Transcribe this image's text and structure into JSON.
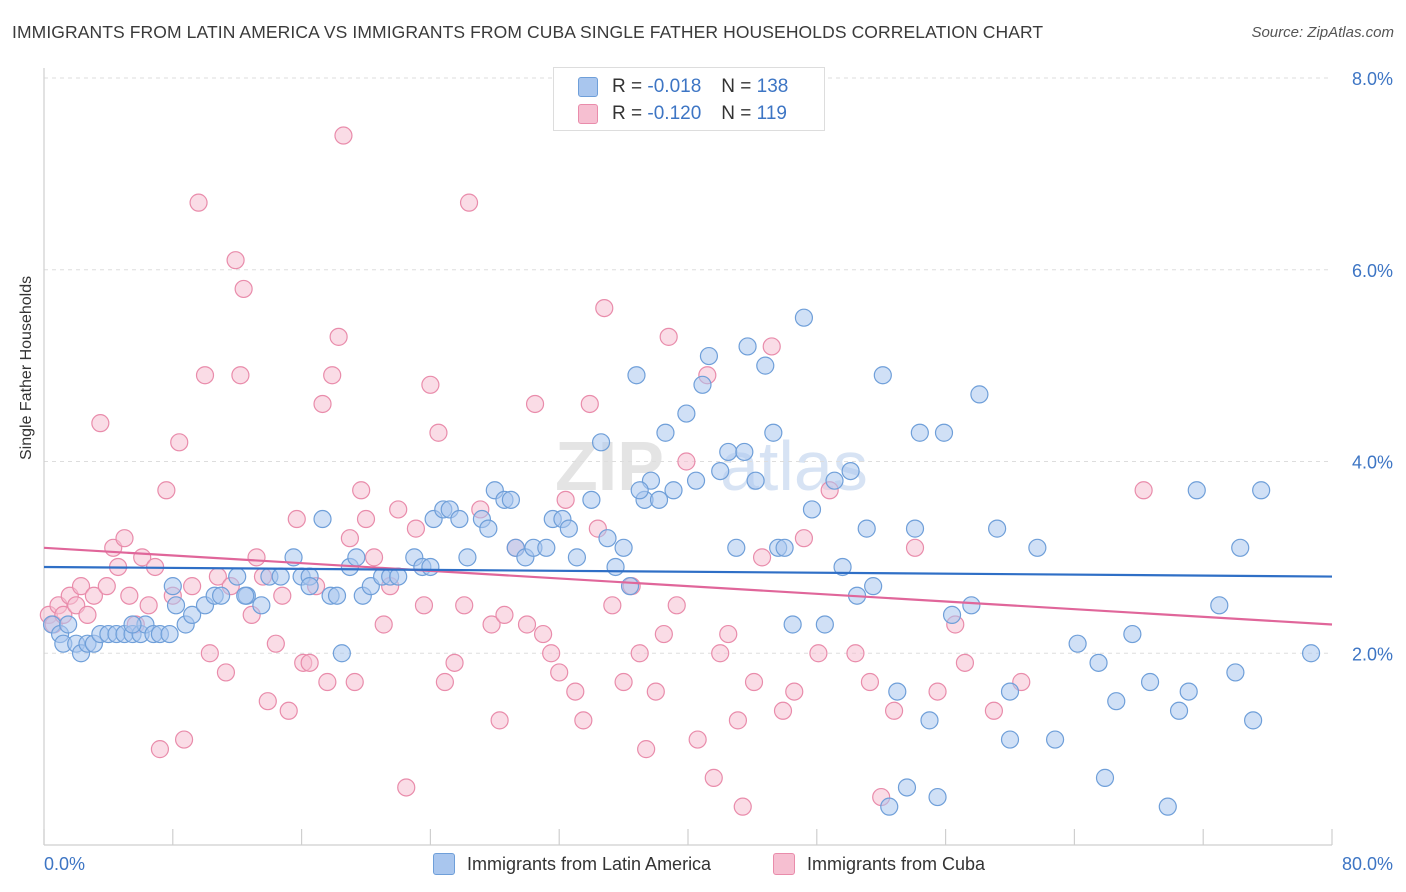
{
  "header": {
    "title": "IMMIGRANTS FROM LATIN AMERICA VS IMMIGRANTS FROM CUBA SINGLE FATHER HOUSEHOLDS CORRELATION CHART",
    "source": "Source: ZipAtlas.com"
  },
  "colors": {
    "blue_fill": "#a9c6ee",
    "blue_stroke": "#6f9fd9",
    "blue_line": "#2f6fc6",
    "pink_fill": "#f6bfd1",
    "pink_stroke": "#e98cab",
    "pink_line": "#e0669a",
    "axis_text": "#3d75c4",
    "grid": "#dddddd"
  },
  "legend": {
    "blue": {
      "r_label": "R =",
      "r_value": "-0.018",
      "n_label": "N =",
      "n_value": "138"
    },
    "pink": {
      "r_label": "R =",
      "r_value": "-0.120",
      "n_label": "N =",
      "n_value": "119"
    }
  },
  "bottom_legend": {
    "blue": "Immigrants from Latin America",
    "pink": "Immigrants from Cuba"
  },
  "watermark": {
    "zip": "ZIP",
    "atlas": "atlas"
  },
  "chart_data": {
    "type": "scatter",
    "title": "IMMIGRANTS FROM LATIN AMERICA VS IMMIGRANTS FROM CUBA SINGLE FATHER HOUSEHOLDS CORRELATION CHART",
    "xlabel": "",
    "ylabel": "Single Father Households",
    "xlim": [
      0,
      80
    ],
    "ylim": [
      0,
      8.0
    ],
    "x_tick_labels": {
      "min": "0.0%",
      "max": "80.0%"
    },
    "y_ticks": [
      2.0,
      4.0,
      6.0,
      8.0
    ],
    "y_tick_labels": [
      "2.0%",
      "4.0%",
      "6.0%",
      "8.0%"
    ],
    "grid": true,
    "series": [
      {
        "name": "Immigrants from Latin America",
        "color": "blue",
        "trend": [
          [
            0,
            2.9
          ],
          [
            80,
            2.8
          ]
        ],
        "points": [
          [
            0.5,
            2.3
          ],
          [
            1.0,
            2.2
          ],
          [
            1.2,
            2.1
          ],
          [
            1.5,
            2.3
          ],
          [
            2.0,
            2.1
          ],
          [
            2.3,
            2.0
          ],
          [
            2.7,
            2.1
          ],
          [
            3.1,
            2.1
          ],
          [
            3.5,
            2.2
          ],
          [
            4.0,
            2.2
          ],
          [
            4.5,
            2.2
          ],
          [
            5.0,
            2.2
          ],
          [
            5.5,
            2.2
          ],
          [
            6.0,
            2.2
          ],
          [
            6.3,
            2.3
          ],
          [
            6.8,
            2.2
          ],
          [
            7.2,
            2.2
          ],
          [
            7.8,
            2.2
          ],
          [
            8.2,
            2.5
          ],
          [
            8.8,
            2.3
          ],
          [
            9.2,
            2.4
          ],
          [
            10.0,
            2.5
          ],
          [
            10.6,
            2.6
          ],
          [
            11.0,
            2.6
          ],
          [
            12.0,
            2.8
          ],
          [
            12.6,
            2.6
          ],
          [
            13.5,
            2.5
          ],
          [
            14.0,
            2.8
          ],
          [
            14.7,
            2.8
          ],
          [
            15.5,
            3.0
          ],
          [
            16.0,
            2.8
          ],
          [
            16.5,
            2.8
          ],
          [
            17.3,
            3.4
          ],
          [
            17.8,
            2.6
          ],
          [
            18.2,
            2.6
          ],
          [
            18.5,
            2.0
          ],
          [
            19.0,
            2.9
          ],
          [
            19.4,
            3.0
          ],
          [
            19.8,
            2.6
          ],
          [
            20.3,
            2.7
          ],
          [
            21.0,
            2.8
          ],
          [
            21.5,
            2.8
          ],
          [
            22.0,
            2.8
          ],
          [
            23.0,
            3.0
          ],
          [
            23.5,
            2.9
          ],
          [
            24.2,
            3.4
          ],
          [
            24.8,
            3.5
          ],
          [
            25.2,
            3.5
          ],
          [
            25.8,
            3.4
          ],
          [
            26.3,
            3.0
          ],
          [
            27.2,
            3.4
          ],
          [
            27.6,
            3.3
          ],
          [
            28.0,
            3.7
          ],
          [
            28.6,
            3.6
          ],
          [
            29.3,
            3.1
          ],
          [
            29.9,
            3.0
          ],
          [
            30.4,
            3.1
          ],
          [
            31.2,
            3.1
          ],
          [
            31.6,
            3.4
          ],
          [
            32.2,
            3.4
          ],
          [
            32.6,
            3.3
          ],
          [
            33.1,
            3.0
          ],
          [
            34.0,
            3.6
          ],
          [
            34.6,
            4.2
          ],
          [
            35.0,
            3.2
          ],
          [
            35.5,
            2.9
          ],
          [
            36.0,
            3.1
          ],
          [
            36.4,
            2.7
          ],
          [
            36.8,
            4.9
          ],
          [
            37.3,
            3.6
          ],
          [
            37.7,
            3.8
          ],
          [
            38.2,
            3.6
          ],
          [
            38.6,
            4.3
          ],
          [
            39.1,
            3.7
          ],
          [
            39.9,
            4.5
          ],
          [
            40.5,
            3.8
          ],
          [
            40.9,
            4.8
          ],
          [
            41.3,
            5.1
          ],
          [
            42.0,
            3.9
          ],
          [
            42.5,
            4.1
          ],
          [
            43.0,
            3.1
          ],
          [
            43.7,
            5.2
          ],
          [
            44.2,
            3.8
          ],
          [
            44.8,
            5.0
          ],
          [
            45.3,
            4.3
          ],
          [
            45.6,
            3.1
          ],
          [
            46.0,
            3.1
          ],
          [
            46.5,
            2.3
          ],
          [
            47.2,
            5.5
          ],
          [
            47.7,
            3.5
          ],
          [
            48.5,
            2.3
          ],
          [
            49.1,
            3.8
          ],
          [
            49.6,
            2.9
          ],
          [
            50.1,
            3.9
          ],
          [
            50.5,
            2.6
          ],
          [
            51.1,
            3.3
          ],
          [
            51.5,
            2.7
          ],
          [
            52.1,
            4.9
          ],
          [
            52.5,
            0.4
          ],
          [
            53.0,
            1.6
          ],
          [
            53.6,
            0.6
          ],
          [
            54.1,
            3.3
          ],
          [
            54.4,
            4.3
          ],
          [
            55.0,
            1.3
          ],
          [
            55.5,
            0.5
          ],
          [
            55.9,
            4.3
          ],
          [
            56.4,
            2.4
          ],
          [
            57.6,
            2.5
          ],
          [
            58.1,
            4.7
          ],
          [
            59.2,
            3.3
          ],
          [
            60.0,
            1.1
          ],
          [
            60.0,
            1.6
          ],
          [
            61.7,
            3.1
          ],
          [
            62.8,
            1.1
          ],
          [
            64.2,
            2.1
          ],
          [
            65.5,
            1.9
          ],
          [
            65.9,
            0.7
          ],
          [
            66.6,
            1.5
          ],
          [
            67.6,
            2.2
          ],
          [
            68.7,
            1.7
          ],
          [
            69.8,
            0.4
          ],
          [
            70.5,
            1.4
          ],
          [
            71.1,
            1.6
          ],
          [
            71.6,
            3.7
          ],
          [
            73.0,
            2.5
          ],
          [
            74.0,
            1.8
          ],
          [
            74.3,
            3.1
          ],
          [
            75.1,
            1.3
          ],
          [
            75.6,
            3.7
          ],
          [
            78.7,
            2.0
          ],
          [
            5.5,
            2.3
          ],
          [
            8.0,
            2.7
          ],
          [
            12.5,
            2.6
          ],
          [
            16.5,
            2.7
          ],
          [
            24.0,
            2.9
          ],
          [
            29.0,
            3.6
          ],
          [
            37.0,
            3.7
          ],
          [
            43.5,
            4.1
          ]
        ]
      },
      {
        "name": "Immigrants from Cuba",
        "color": "pink",
        "trend": [
          [
            0,
            3.1
          ],
          [
            80,
            2.3
          ]
        ],
        "points": [
          [
            0.3,
            2.4
          ],
          [
            0.6,
            2.3
          ],
          [
            0.9,
            2.5
          ],
          [
            1.2,
            2.4
          ],
          [
            1.6,
            2.6
          ],
          [
            2.0,
            2.5
          ],
          [
            2.3,
            2.7
          ],
          [
            2.7,
            2.4
          ],
          [
            3.1,
            2.6
          ],
          [
            3.5,
            4.4
          ],
          [
            3.9,
            2.7
          ],
          [
            4.3,
            3.1
          ],
          [
            4.6,
            2.9
          ],
          [
            5.0,
            3.2
          ],
          [
            5.3,
            2.6
          ],
          [
            5.7,
            2.3
          ],
          [
            6.1,
            3.0
          ],
          [
            6.5,
            2.5
          ],
          [
            6.9,
            2.9
          ],
          [
            7.2,
            1.0
          ],
          [
            7.6,
            3.7
          ],
          [
            8.0,
            2.6
          ],
          [
            8.4,
            4.2
          ],
          [
            8.7,
            1.1
          ],
          [
            9.2,
            2.7
          ],
          [
            9.6,
            6.7
          ],
          [
            10.0,
            4.9
          ],
          [
            10.3,
            2.0
          ],
          [
            10.8,
            2.8
          ],
          [
            11.3,
            1.8
          ],
          [
            11.6,
            2.7
          ],
          [
            11.9,
            6.1
          ],
          [
            12.2,
            4.9
          ],
          [
            12.4,
            5.8
          ],
          [
            12.9,
            2.4
          ],
          [
            13.2,
            3.0
          ],
          [
            13.6,
            2.8
          ],
          [
            13.9,
            1.5
          ],
          [
            14.4,
            2.1
          ],
          [
            14.8,
            2.6
          ],
          [
            15.2,
            1.4
          ],
          [
            15.7,
            3.4
          ],
          [
            16.1,
            1.9
          ],
          [
            16.5,
            1.9
          ],
          [
            16.9,
            2.7
          ],
          [
            17.3,
            4.6
          ],
          [
            17.6,
            1.7
          ],
          [
            17.9,
            4.9
          ],
          [
            18.3,
            5.3
          ],
          [
            18.6,
            7.4
          ],
          [
            19.0,
            3.2
          ],
          [
            19.3,
            1.7
          ],
          [
            19.7,
            3.7
          ],
          [
            20.0,
            3.4
          ],
          [
            20.5,
            3.0
          ],
          [
            21.1,
            2.3
          ],
          [
            21.5,
            2.7
          ],
          [
            22.0,
            3.5
          ],
          [
            22.5,
            0.6
          ],
          [
            23.1,
            3.3
          ],
          [
            23.6,
            2.5
          ],
          [
            24.0,
            4.8
          ],
          [
            24.5,
            4.3
          ],
          [
            24.9,
            1.7
          ],
          [
            25.5,
            1.9
          ],
          [
            26.1,
            2.5
          ],
          [
            26.4,
            6.7
          ],
          [
            27.1,
            3.5
          ],
          [
            27.8,
            2.3
          ],
          [
            28.3,
            1.3
          ],
          [
            28.6,
            2.4
          ],
          [
            29.3,
            3.1
          ],
          [
            30.0,
            2.3
          ],
          [
            30.5,
            4.6
          ],
          [
            31.0,
            2.2
          ],
          [
            31.5,
            2.0
          ],
          [
            32.0,
            1.8
          ],
          [
            32.4,
            3.6
          ],
          [
            33.0,
            1.6
          ],
          [
            33.5,
            1.3
          ],
          [
            33.9,
            4.6
          ],
          [
            34.4,
            3.3
          ],
          [
            34.8,
            5.6
          ],
          [
            35.3,
            2.5
          ],
          [
            36.0,
            1.7
          ],
          [
            36.5,
            2.7
          ],
          [
            37.0,
            2.0
          ],
          [
            37.4,
            1.0
          ],
          [
            38.0,
            1.6
          ],
          [
            38.5,
            2.2
          ],
          [
            38.8,
            5.3
          ],
          [
            39.3,
            2.5
          ],
          [
            39.9,
            4.0
          ],
          [
            40.6,
            1.1
          ],
          [
            41.2,
            4.9
          ],
          [
            41.6,
            0.7
          ],
          [
            42.0,
            2.0
          ],
          [
            42.5,
            2.2
          ],
          [
            43.1,
            1.3
          ],
          [
            43.4,
            0.4
          ],
          [
            44.1,
            1.7
          ],
          [
            44.6,
            3.0
          ],
          [
            45.2,
            5.2
          ],
          [
            45.9,
            1.4
          ],
          [
            46.6,
            1.6
          ],
          [
            47.2,
            3.2
          ],
          [
            48.1,
            2.0
          ],
          [
            48.8,
            3.7
          ],
          [
            50.4,
            2.0
          ],
          [
            51.3,
            1.7
          ],
          [
            52.0,
            0.5
          ],
          [
            52.8,
            1.4
          ],
          [
            54.1,
            3.1
          ],
          [
            55.5,
            1.6
          ],
          [
            56.6,
            2.3
          ],
          [
            57.2,
            1.9
          ],
          [
            59.0,
            1.4
          ],
          [
            60.7,
            1.7
          ],
          [
            68.3,
            3.7
          ]
        ]
      }
    ]
  }
}
